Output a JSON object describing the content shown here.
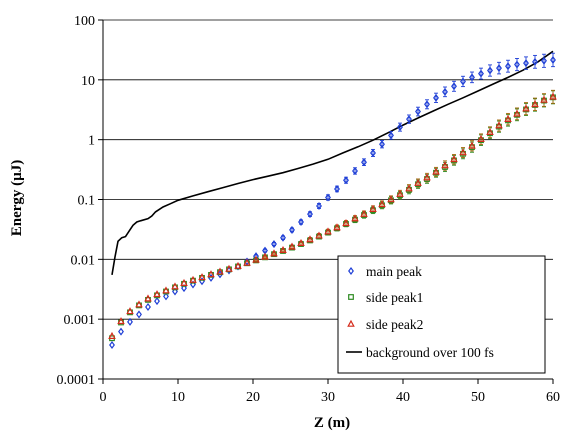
{
  "chart_data": {
    "type": "scatter",
    "title": "",
    "xlabel": "Z (m)",
    "ylabel": "Energy (µJ)",
    "x_scale": "linear",
    "y_scale": "log",
    "xlim": [
      0,
      60
    ],
    "ylim": [
      0.0001,
      100
    ],
    "x_ticks": [
      "0",
      "10",
      "20",
      "30",
      "40",
      "50",
      "60"
    ],
    "y_ticks": [
      "0.0001",
      "0.001",
      "0.01",
      "0.1",
      "1",
      "10",
      "100"
    ],
    "grid": "horizontal major gridlines",
    "legend_position": "bottom-right",
    "colors": {
      "main_peak": "#1f3fd6",
      "side_peak1": "#2e8b22",
      "side_peak2": "#d42a1a",
      "background": "#000000",
      "side_error_bars": "#a56a10"
    },
    "series": [
      {
        "name": "main peak",
        "marker": "diamond",
        "error_bars": true,
        "points": [
          [
            1.2,
            0.00037
          ],
          [
            2.4,
            0.00062
          ],
          [
            3.6,
            0.0009
          ],
          [
            4.8,
            0.0012
          ],
          [
            6,
            0.0016
          ],
          [
            7.2,
            0.002
          ],
          [
            8.4,
            0.0024
          ],
          [
            9.6,
            0.0029
          ],
          [
            10.8,
            0.0033
          ],
          [
            12,
            0.0038
          ],
          [
            13.2,
            0.0043
          ],
          [
            14.4,
            0.0049
          ],
          [
            15.6,
            0.0056
          ],
          [
            16.8,
            0.0065
          ],
          [
            18,
            0.0076
          ],
          [
            19.2,
            0.0092
          ],
          [
            20.4,
            0.0113
          ],
          [
            21.6,
            0.014
          ],
          [
            22.8,
            0.018
          ],
          [
            24,
            0.023
          ],
          [
            25.2,
            0.031
          ],
          [
            26.4,
            0.042
          ],
          [
            27.6,
            0.057
          ],
          [
            28.8,
            0.078
          ],
          [
            30,
            0.108
          ],
          [
            31.2,
            0.15
          ],
          [
            32.4,
            0.21
          ],
          [
            33.6,
            0.3
          ],
          [
            34.8,
            0.42
          ],
          [
            36,
            0.6
          ],
          [
            37.2,
            0.84
          ],
          [
            38.4,
            1.18
          ],
          [
            39.6,
            1.62
          ],
          [
            40.8,
            2.2
          ],
          [
            42,
            2.95
          ],
          [
            43.2,
            3.9
          ],
          [
            44.4,
            5.0
          ],
          [
            45.6,
            6.3
          ],
          [
            46.8,
            7.8
          ],
          [
            48,
            9.4
          ],
          [
            49.2,
            11.0
          ],
          [
            50.4,
            12.7
          ],
          [
            51.6,
            14.3
          ],
          [
            52.8,
            15.7
          ],
          [
            54,
            16.9
          ],
          [
            55.2,
            18.0
          ],
          [
            56.4,
            19.0
          ],
          [
            57.6,
            20.0
          ],
          [
            58.8,
            20.8
          ],
          [
            60,
            21.5
          ]
        ]
      },
      {
        "name": "side peak1",
        "marker": "square",
        "error_bars": true,
        "points": [
          [
            1.2,
            0.00048
          ],
          [
            2.4,
            0.00088
          ],
          [
            3.6,
            0.0013
          ],
          [
            4.8,
            0.0017
          ],
          [
            6,
            0.0021
          ],
          [
            7.2,
            0.0025
          ],
          [
            8.4,
            0.0029
          ],
          [
            9.6,
            0.0034
          ],
          [
            10.8,
            0.0039
          ],
          [
            12,
            0.0044
          ],
          [
            13.2,
            0.0049
          ],
          [
            14.4,
            0.0055
          ],
          [
            15.6,
            0.0061
          ],
          [
            16.8,
            0.0068
          ],
          [
            18,
            0.0076
          ],
          [
            19.2,
            0.0086
          ],
          [
            20.4,
            0.0096
          ],
          [
            21.6,
            0.0108
          ],
          [
            22.8,
            0.0122
          ],
          [
            24,
            0.0138
          ],
          [
            25.2,
            0.0157
          ],
          [
            26.4,
            0.018
          ],
          [
            27.6,
            0.0207
          ],
          [
            28.8,
            0.024
          ],
          [
            30,
            0.028
          ],
          [
            31.2,
            0.033
          ],
          [
            32.4,
            0.039
          ],
          [
            33.6,
            0.046
          ],
          [
            34.8,
            0.055
          ],
          [
            36,
            0.066
          ],
          [
            37.2,
            0.08
          ],
          [
            38.4,
            0.097
          ],
          [
            39.6,
            0.118
          ],
          [
            40.8,
            0.145
          ],
          [
            42,
            0.18
          ],
          [
            43.2,
            0.22
          ],
          [
            44.4,
            0.28
          ],
          [
            45.6,
            0.35
          ],
          [
            46.8,
            0.45
          ],
          [
            48,
            0.58
          ],
          [
            49.2,
            0.75
          ],
          [
            50.4,
            0.98
          ],
          [
            51.6,
            1.28
          ],
          [
            52.8,
            1.65
          ],
          [
            54,
            2.1
          ],
          [
            55.2,
            2.6
          ],
          [
            56.4,
            3.2
          ],
          [
            57.6,
            3.8
          ],
          [
            58.8,
            4.5
          ],
          [
            60,
            5.1
          ]
        ]
      },
      {
        "name": "side peak2",
        "marker": "triangle",
        "error_bars": true,
        "points": [
          [
            1.2,
            0.00052
          ],
          [
            2.4,
            0.00092
          ],
          [
            3.6,
            0.00135
          ],
          [
            4.8,
            0.00175
          ],
          [
            6,
            0.0022
          ],
          [
            7.2,
            0.0026
          ],
          [
            8.4,
            0.003
          ],
          [
            9.6,
            0.0035
          ],
          [
            10.8,
            0.004
          ],
          [
            12,
            0.0045
          ],
          [
            13.2,
            0.005
          ],
          [
            14.4,
            0.0056
          ],
          [
            15.6,
            0.0062
          ],
          [
            16.8,
            0.0069
          ],
          [
            18,
            0.0077
          ],
          [
            19.2,
            0.0087
          ],
          [
            20.4,
            0.0098
          ],
          [
            21.6,
            0.011
          ],
          [
            22.8,
            0.0125
          ],
          [
            24,
            0.0142
          ],
          [
            25.2,
            0.0162
          ],
          [
            26.4,
            0.0186
          ],
          [
            27.6,
            0.0214
          ],
          [
            28.8,
            0.0248
          ],
          [
            30,
            0.029
          ],
          [
            31.2,
            0.034
          ],
          [
            32.4,
            0.04
          ],
          [
            33.6,
            0.048
          ],
          [
            34.8,
            0.057
          ],
          [
            36,
            0.069
          ],
          [
            37.2,
            0.083
          ],
          [
            38.4,
            0.1
          ],
          [
            39.6,
            0.123
          ],
          [
            40.8,
            0.152
          ],
          [
            42,
            0.188
          ],
          [
            43.2,
            0.232
          ],
          [
            44.4,
            0.29
          ],
          [
            45.6,
            0.37
          ],
          [
            46.8,
            0.47
          ],
          [
            48,
            0.61
          ],
          [
            49.2,
            0.79
          ],
          [
            50.4,
            1.02
          ],
          [
            51.6,
            1.33
          ],
          [
            52.8,
            1.72
          ],
          [
            54,
            2.2
          ],
          [
            55.2,
            2.7
          ],
          [
            56.4,
            3.3
          ],
          [
            57.6,
            3.9
          ],
          [
            58.8,
            4.6
          ],
          [
            60,
            5.2
          ]
        ]
      },
      {
        "name": "background over 100 fs",
        "marker": "line",
        "error_bars": false,
        "points": [
          [
            1.2,
            0.0055
          ],
          [
            1.6,
            0.011
          ],
          [
            2,
            0.02
          ],
          [
            2.5,
            0.023
          ],
          [
            3,
            0.024
          ],
          [
            3.5,
            0.03
          ],
          [
            4,
            0.037
          ],
          [
            4.5,
            0.042
          ],
          [
            5,
            0.044
          ],
          [
            6,
            0.048
          ],
          [
            6.5,
            0.053
          ],
          [
            7,
            0.062
          ],
          [
            8,
            0.075
          ],
          [
            9,
            0.085
          ],
          [
            10,
            0.097
          ],
          [
            12,
            0.115
          ],
          [
            14,
            0.135
          ],
          [
            16,
            0.158
          ],
          [
            18,
            0.185
          ],
          [
            20,
            0.215
          ],
          [
            22,
            0.245
          ],
          [
            24,
            0.28
          ],
          [
            26,
            0.33
          ],
          [
            28,
            0.39
          ],
          [
            30,
            0.47
          ],
          [
            32,
            0.6
          ],
          [
            34,
            0.76
          ],
          [
            36,
            0.98
          ],
          [
            38,
            1.3
          ],
          [
            40,
            1.75
          ],
          [
            42,
            2.3
          ],
          [
            44,
            3.0
          ],
          [
            46,
            3.9
          ],
          [
            48,
            5.0
          ],
          [
            50,
            6.5
          ],
          [
            52,
            8.5
          ],
          [
            54,
            11.0
          ],
          [
            56,
            14.5
          ],
          [
            58,
            20.0
          ],
          [
            60,
            30.0
          ]
        ]
      }
    ]
  }
}
